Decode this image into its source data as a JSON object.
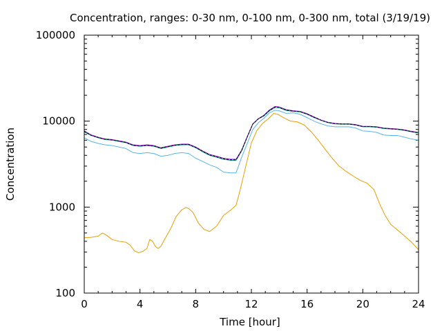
{
  "chart_data": {
    "type": "line",
    "title": "Concentration, ranges: 0-30 nm, 0-100 nm, 0-300 nm, total (3/19/19)",
    "xlabel": "Time [hour]",
    "ylabel": "Concentration",
    "xlim": [
      0,
      24
    ],
    "ylim": [
      100,
      100000
    ],
    "yscale": "log",
    "grid": false,
    "legend": "none",
    "xticks": [
      0,
      4,
      8,
      12,
      16,
      20,
      24
    ],
    "xtick_labels": [
      "0",
      "4",
      "8",
      "12",
      "16",
      "20",
      "24"
    ],
    "yticks": [
      100,
      1000,
      10000,
      100000
    ],
    "ytick_labels": [
      "100",
      "1000",
      "10000",
      "100000"
    ],
    "series": [
      {
        "color": "#e69f00",
        "x": [
          0,
          0.5,
          1,
          1.3,
          1.6,
          2,
          2.5,
          3,
          3.3,
          3.6,
          3.9,
          4.2,
          4.5,
          4.7,
          4.9,
          5.1,
          5.3,
          5.5,
          5.8,
          6.2,
          6.6,
          7,
          7.3,
          7.5,
          7.8,
          8.2,
          8.6,
          9,
          9.5,
          10,
          10.5,
          10.9,
          11.2,
          11.6,
          12,
          12.4,
          12.8,
          13.2,
          13.6,
          13.9,
          14.3,
          14.8,
          15.3,
          15.8,
          16.3,
          16.8,
          17.3,
          17.8,
          18.3,
          18.8,
          19.3,
          19.8,
          20.3,
          20.8,
          21.2,
          21.6,
          22,
          22.5,
          23,
          23.5,
          24
        ],
        "y": [
          440,
          445,
          460,
          500,
          470,
          420,
          400,
          390,
          360,
          310,
          295,
          305,
          330,
          420,
          400,
          350,
          330,
          350,
          430,
          560,
          780,
          930,
          990,
          960,
          870,
          650,
          550,
          520,
          600,
          800,
          920,
          1050,
          1600,
          3000,
          5600,
          7800,
          9400,
          10600,
          12300,
          12000,
          11000,
          10000,
          9800,
          9000,
          7500,
          6000,
          4700,
          3700,
          3000,
          2600,
          2300,
          2050,
          1900,
          1600,
          1100,
          800,
          630,
          540,
          460,
          390,
          320
        ]
      },
      {
        "color": "#56b4e9",
        "x": [
          0,
          0.5,
          1,
          1.5,
          2,
          2.5,
          3,
          3.5,
          4,
          4.5,
          5,
          5.5,
          6,
          6.5,
          7,
          7.5,
          8,
          8.5,
          9,
          9.5,
          10,
          10.5,
          10.9,
          11.3,
          11.7,
          12.1,
          12.5,
          12.9,
          13.3,
          13.7,
          14,
          14.5,
          15,
          15.5,
          16,
          16.5,
          17,
          17.5,
          18,
          18.5,
          19,
          19.5,
          20,
          20.5,
          21,
          21.5,
          22,
          22.5,
          23,
          23.5,
          24
        ],
        "y": [
          6400,
          5800,
          5500,
          5300,
          5200,
          5000,
          4800,
          4300,
          4200,
          4300,
          4200,
          3900,
          4000,
          4200,
          4300,
          4200,
          3700,
          3400,
          3100,
          2900,
          2550,
          2500,
          2500,
          3800,
          5500,
          8000,
          9600,
          10800,
          12500,
          13400,
          13200,
          12300,
          12500,
          12000,
          11000,
          10000,
          9300,
          8800,
          8600,
          8600,
          8600,
          8300,
          7700,
          7600,
          7400,
          6900,
          6800,
          6800,
          6500,
          6200,
          6000
        ]
      },
      {
        "color": "#009e73",
        "x": [
          0,
          0.5,
          1,
          1.5,
          2,
          2.5,
          3,
          3.5,
          4,
          4.5,
          5,
          5.5,
          6,
          6.5,
          7,
          7.5,
          8,
          8.5,
          9,
          9.5,
          10,
          10.5,
          10.9,
          11.3,
          11.7,
          12.1,
          12.5,
          12.9,
          13.3,
          13.7,
          14,
          14.5,
          15,
          15.5,
          16,
          16.5,
          17,
          17.5,
          18,
          18.5,
          19,
          19.5,
          20,
          20.5,
          21,
          21.5,
          22,
          22.5,
          23,
          23.5,
          24
        ],
        "y": [
          7500,
          6800,
          6400,
          6100,
          6000,
          5800,
          5600,
          5200,
          5100,
          5200,
          5100,
          4800,
          5000,
          5200,
          5300,
          5300,
          4900,
          4400,
          4000,
          3800,
          3600,
          3500,
          3500,
          4500,
          6500,
          9200,
          10600,
          11500,
          13200,
          14400,
          14300,
          13300,
          13000,
          12800,
          12000,
          11000,
          10200,
          9600,
          9300,
          9200,
          9200,
          9000,
          8600,
          8600,
          8500,
          8200,
          8100,
          8000,
          7800,
          7500,
          7300
        ]
      },
      {
        "color": "#9400d3",
        "x": [
          0,
          0.5,
          1,
          1.5,
          2,
          2.5,
          3,
          3.5,
          4,
          4.5,
          5,
          5.5,
          6,
          6.5,
          7,
          7.5,
          8,
          8.5,
          9,
          9.5,
          10,
          10.5,
          10.9,
          11.3,
          11.7,
          12.1,
          12.5,
          12.9,
          13.3,
          13.7,
          14,
          14.5,
          15,
          15.5,
          16,
          16.5,
          17,
          17.5,
          18,
          18.5,
          19,
          19.5,
          20,
          20.5,
          21,
          21.5,
          22,
          22.5,
          23,
          23.5,
          24
        ],
        "y": [
          7700,
          6900,
          6500,
          6200,
          6100,
          5900,
          5700,
          5300,
          5200,
          5300,
          5200,
          4900,
          5100,
          5300,
          5400,
          5400,
          5000,
          4500,
          4100,
          3900,
          3700,
          3600,
          3600,
          4600,
          6600,
          9300,
          10700,
          11700,
          13500,
          14800,
          14600,
          13600,
          13200,
          13000,
          12200,
          11200,
          10300,
          9700,
          9400,
          9300,
          9300,
          9100,
          8700,
          8700,
          8600,
          8300,
          8200,
          8100,
          7900,
          7600,
          7400
        ]
      },
      {
        "color": "#000000",
        "dashed": true,
        "x": [
          0,
          0.5,
          1,
          1.5,
          2,
          2.5,
          3,
          3.5,
          4,
          4.5,
          5,
          5.5,
          6,
          6.5,
          7,
          7.5,
          8,
          8.5,
          9,
          9.5,
          10,
          10.5,
          10.9,
          11.3,
          11.7,
          12.1,
          12.5,
          12.9,
          13.3,
          13.7,
          14,
          14.5,
          15,
          15.5,
          16,
          16.5,
          17,
          17.5,
          18,
          18.5,
          19,
          19.5,
          20,
          20.5,
          21,
          21.5,
          22,
          22.5,
          23,
          23.5,
          24
        ],
        "y": [
          7600,
          6850,
          6450,
          6150,
          6050,
          5850,
          5650,
          5250,
          5150,
          5250,
          5150,
          4850,
          5050,
          5250,
          5350,
          5350,
          4950,
          4450,
          4050,
          3850,
          3650,
          3550,
          3550,
          4550,
          6550,
          9250,
          10650,
          11600,
          13350,
          14600,
          14450,
          13450,
          13100,
          12900,
          12100,
          11100,
          10250,
          9650,
          9350,
          9250,
          9250,
          9050,
          8650,
          8650,
          8550,
          8250,
          8150,
          8050,
          7850,
          7550,
          7350
        ]
      }
    ]
  }
}
